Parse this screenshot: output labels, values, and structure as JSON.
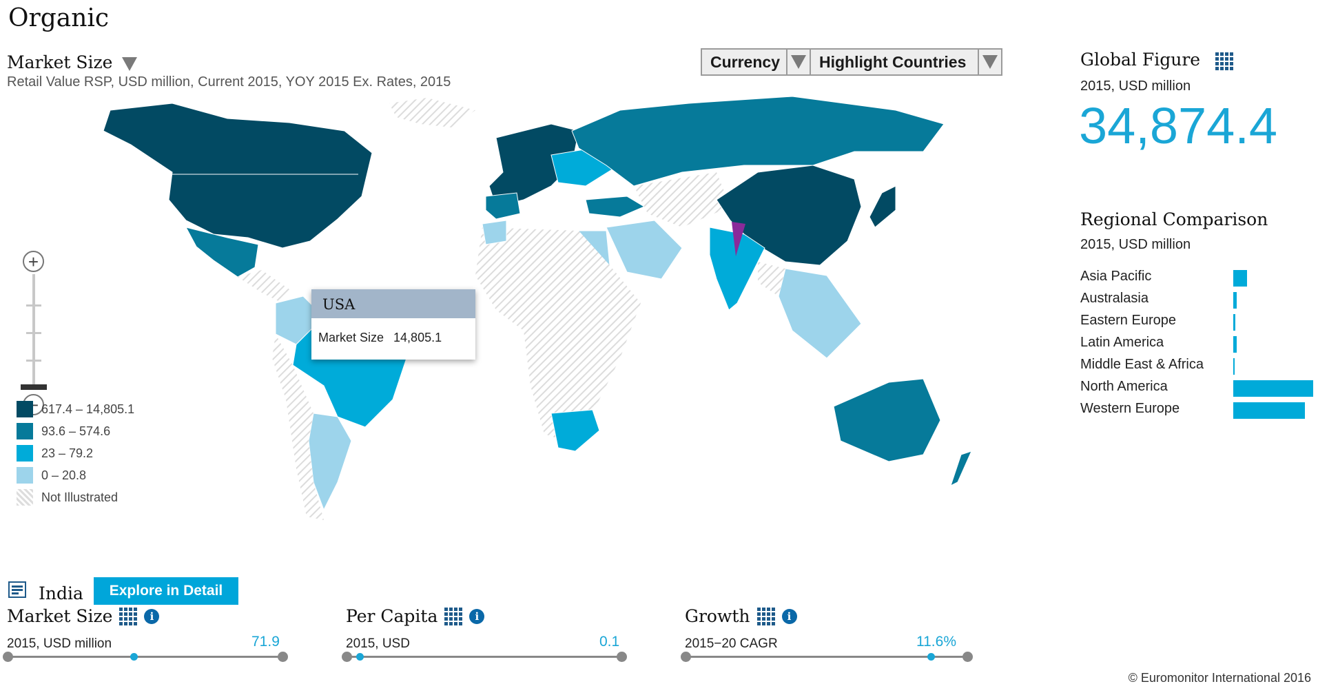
{
  "app": {
    "title": "Organic"
  },
  "map": {
    "metric": "Market Size",
    "subtitle": "Retail Value RSP, USD million, Current 2015, YOY 2015 Ex. Rates, 2015",
    "dropdowns": [
      {
        "label": "Currency"
      },
      {
        "label": "Highlight Countries"
      }
    ],
    "legend": [
      {
        "label": "617.4 – 14,805.1",
        "color": "#024a63"
      },
      {
        "label": "93.6 – 574.6",
        "color": "#067a9a"
      },
      {
        "label": "23 – 79.2",
        "color": "#00abd9"
      },
      {
        "label": "0 – 20.8",
        "color": "#9dd4eb"
      },
      {
        "label": "Not Illustrated",
        "color": "hatched"
      }
    ],
    "tooltip": {
      "country": "USA",
      "metric_label": "Market Size",
      "value": "14,805.1"
    },
    "zoom": {
      "in_icon": "plus-icon",
      "out_icon": "minus-icon"
    }
  },
  "global": {
    "title": "Global Figure",
    "unit": "2015, USD million",
    "value": "34,874.4"
  },
  "regional": {
    "title": "Regional Comparison",
    "unit": "2015, USD million",
    "regions": [
      {
        "name": "Asia Pacific",
        "share": 0.17
      },
      {
        "name": "Australasia",
        "share": 0.04
      },
      {
        "name": "Eastern Europe",
        "share": 0.025
      },
      {
        "name": "Latin America",
        "share": 0.04
      },
      {
        "name": "Middle East & Africa",
        "share": 0.015
      },
      {
        "name": "North America",
        "share": 1.0
      },
      {
        "name": "Western Europe",
        "share": 0.9
      }
    ]
  },
  "country": {
    "name": "India",
    "explore_label": "Explore in Detail",
    "metrics": [
      {
        "title": "Market Size",
        "unit": "2015, USD million",
        "value": "71.9",
        "position": 0.46
      },
      {
        "title": "Per Capita",
        "unit": "2015, USD",
        "value": "0.1",
        "position": 0.05
      },
      {
        "title": "Growth",
        "unit": "2015−20 CAGR",
        "value": "11.6%",
        "position": 0.87
      }
    ]
  },
  "footer": {
    "copyright": "© Euromonitor International 2016"
  }
}
